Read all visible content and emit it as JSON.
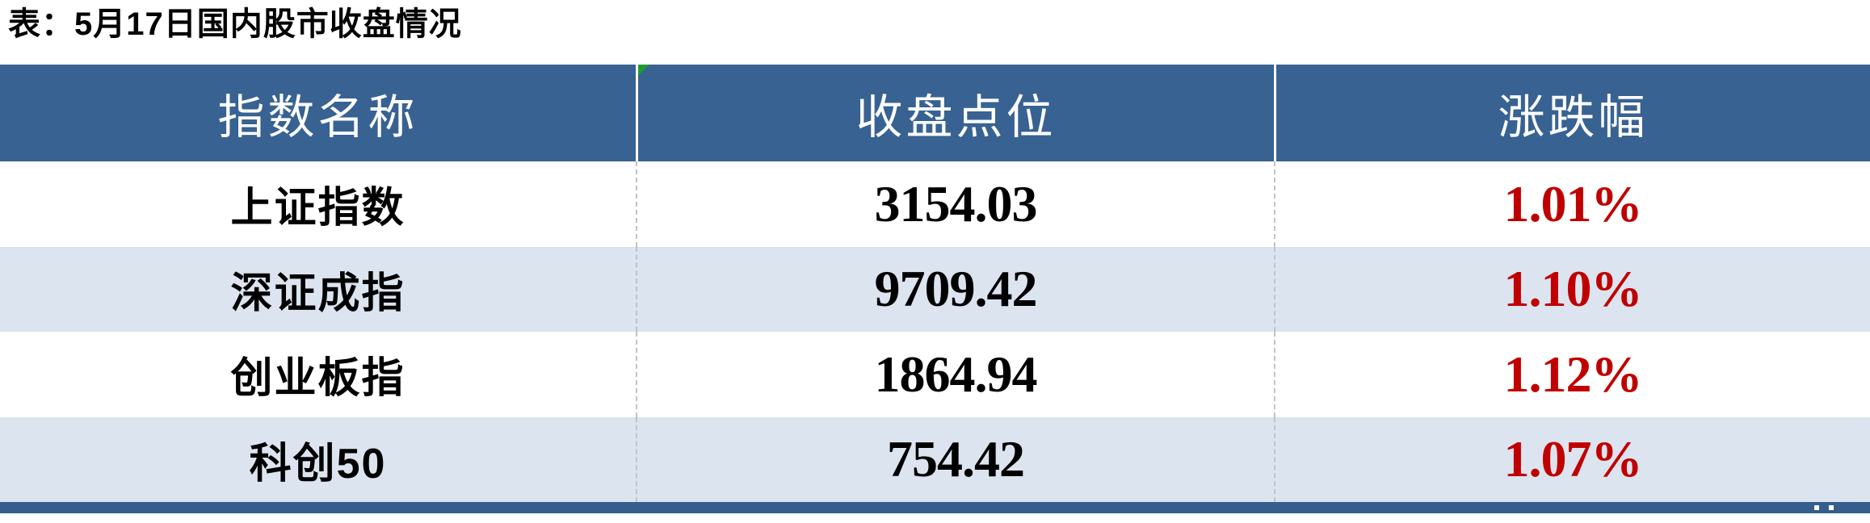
{
  "title": "表：5月17日国内股市收盘情况",
  "colors": {
    "header_bg": "#386291",
    "header_text": "#ffffff",
    "row_alt_bg": "#DBE4EF",
    "change_red": "#C00000",
    "bottom_bar_blue": "#355E8D",
    "error_indicator_green": "#1E9C30"
  },
  "table": {
    "headers": [
      "指数名称",
      "收盘点位",
      "涨跌幅"
    ],
    "rows": [
      {
        "name": "上证指数",
        "close": "3154.03",
        "change": "1.01%"
      },
      {
        "name": "深证成指",
        "close": "9709.42",
        "change": "1.10%"
      },
      {
        "name": "创业板指",
        "close": "1864.94",
        "change": "1.12%"
      },
      {
        "name": "科创50",
        "close": "754.42",
        "change": "1.07%"
      }
    ]
  },
  "chart_data": {
    "type": "table",
    "title": "表：5月17日国内股市收盘情况",
    "columns": [
      "指数名称",
      "收盘点位",
      "涨跌幅"
    ],
    "rows": [
      [
        "上证指数",
        3154.03,
        "1.01%"
      ],
      [
        "深证成指",
        9709.42,
        "1.10%"
      ],
      [
        "创业板指",
        1864.94,
        "1.12%"
      ],
      [
        "科创50",
        754.42,
        "1.07%"
      ]
    ]
  }
}
